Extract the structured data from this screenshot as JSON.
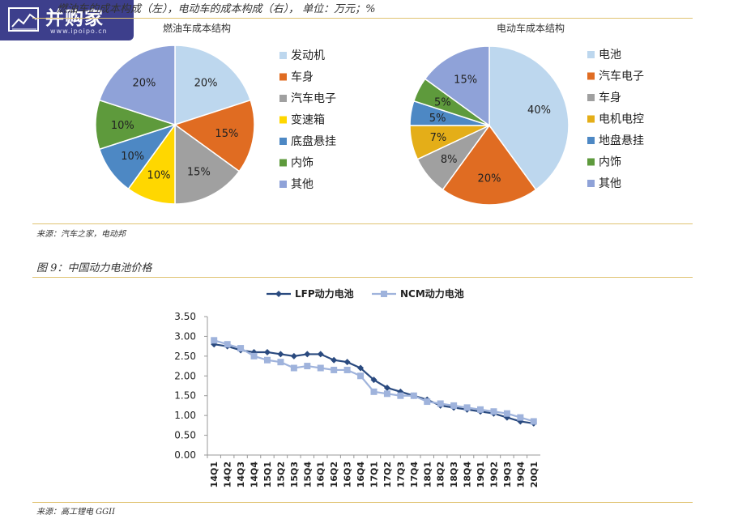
{
  "logo": {
    "name": "并购家",
    "url": "www.ipoipo.cn"
  },
  "caption_top": "燃油车的成本构成（左），电动车的成本构成（右），  单位：万元；%",
  "source_top": "来源：汽车之家，电动邦",
  "figure9_caption": "图 9：中国动力电池价格",
  "source_bottom": "来源：高工锂电 GGII",
  "colors": {
    "light_blue": "#bdd7ee",
    "orange": "#e06c22",
    "gray": "#a0a0a0",
    "yellow": "#ffd700",
    "blue": "#4d88c4",
    "green": "#5e9a3c",
    "lavender": "#8fa2d8",
    "lfp": "#2a4a7f",
    "ncm": "#9fb3dc",
    "rule": "#e0c372"
  },
  "chart_data": [
    {
      "type": "pie",
      "title": "燃油车成本结构",
      "slices": [
        {
          "label": "发动机",
          "value": 20,
          "value_label": "20%",
          "color": "#bdd7ee"
        },
        {
          "label": "车身",
          "value": 15,
          "value_label": "15%",
          "color": "#e06c22"
        },
        {
          "label": "汽车电子",
          "value": 15,
          "value_label": "15%",
          "color": "#a0a0a0"
        },
        {
          "label": "变速箱",
          "value": 10,
          "value_label": "10%",
          "color": "#ffd700"
        },
        {
          "label": "底盘悬挂",
          "value": 10,
          "value_label": "10%",
          "color": "#4d88c4"
        },
        {
          "label": "内饰",
          "value": 10,
          "value_label": "10%",
          "color": "#5e9a3c"
        },
        {
          "label": "其他",
          "value": 20,
          "value_label": "20%",
          "color": "#8fa2d8"
        }
      ],
      "legend_position": "right"
    },
    {
      "type": "pie",
      "title": "电动车成本结构",
      "slices": [
        {
          "label": "电池",
          "value": 40,
          "value_label": "40%",
          "color": "#bdd7ee"
        },
        {
          "label": "汽车电子",
          "value": 20,
          "value_label": "20%",
          "color": "#e06c22"
        },
        {
          "label": "车身",
          "value": 8,
          "value_label": "8%",
          "color": "#a0a0a0"
        },
        {
          "label": "电机电控",
          "value": 7,
          "value_label": "7%",
          "color": "#e4ae18"
        },
        {
          "label": "地盘悬挂",
          "value": 5,
          "value_label": "5%",
          "color": "#4d88c4"
        },
        {
          "label": "内饰",
          "value": 5,
          "value_label": "5%",
          "color": "#5e9a3c"
        },
        {
          "label": "其他",
          "value": 15,
          "value_label": "15%",
          "color": "#8fa2d8"
        }
      ],
      "legend_position": "right"
    },
    {
      "type": "line",
      "categories": [
        "14Q1",
        "14Q2",
        "14Q3",
        "14Q4",
        "15Q1",
        "15Q2",
        "15Q3",
        "15Q4",
        "16Q1",
        "16Q2",
        "16Q3",
        "16Q4",
        "17Q1",
        "17Q2",
        "17Q3",
        "17Q4",
        "18Q1",
        "18Q2",
        "18Q3",
        "18Q4",
        "19Q1",
        "19Q2",
        "19Q3",
        "19Q4",
        "20Q1"
      ],
      "series": [
        {
          "name": "LFP动力电池",
          "color": "#2a4a7f",
          "marker": "diamond",
          "values": [
            2.8,
            2.75,
            2.65,
            2.6,
            2.6,
            2.55,
            2.5,
            2.55,
            2.55,
            2.4,
            2.35,
            2.2,
            1.9,
            1.7,
            1.6,
            1.5,
            1.4,
            1.25,
            1.2,
            1.15,
            1.1,
            1.05,
            0.95,
            0.85,
            0.8
          ]
        },
        {
          "name": "NCM动力电池",
          "color": "#9fb3dc",
          "marker": "square",
          "values": [
            2.9,
            2.8,
            2.7,
            2.5,
            2.4,
            2.35,
            2.2,
            2.25,
            2.2,
            2.15,
            2.15,
            2.0,
            1.6,
            1.55,
            1.5,
            1.5,
            1.35,
            1.3,
            1.25,
            1.2,
            1.15,
            1.1,
            1.05,
            0.95,
            0.85
          ]
        }
      ],
      "yticks": [
        "0.00",
        "0.50",
        "1.00",
        "1.50",
        "2.00",
        "2.50",
        "3.00",
        "3.50"
      ],
      "ylim": [
        0,
        3.5
      ],
      "grid": false,
      "legend_position": "top"
    }
  ]
}
